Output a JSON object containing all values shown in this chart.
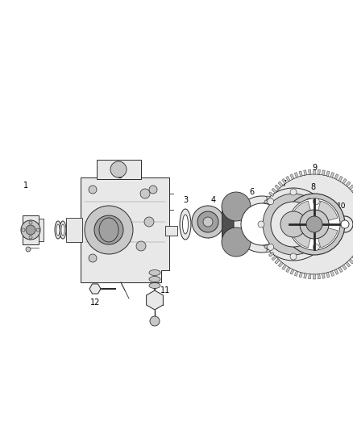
{
  "background_color": "#ffffff",
  "fig_width": 4.38,
  "fig_height": 5.33,
  "dpi": 100,
  "line_color": "#2a2a2a",
  "fill_light": "#e8e8e8",
  "fill_mid": "#c8c8c8",
  "fill_dark": "#a0a0a0",
  "fill_very_dark": "#505050"
}
